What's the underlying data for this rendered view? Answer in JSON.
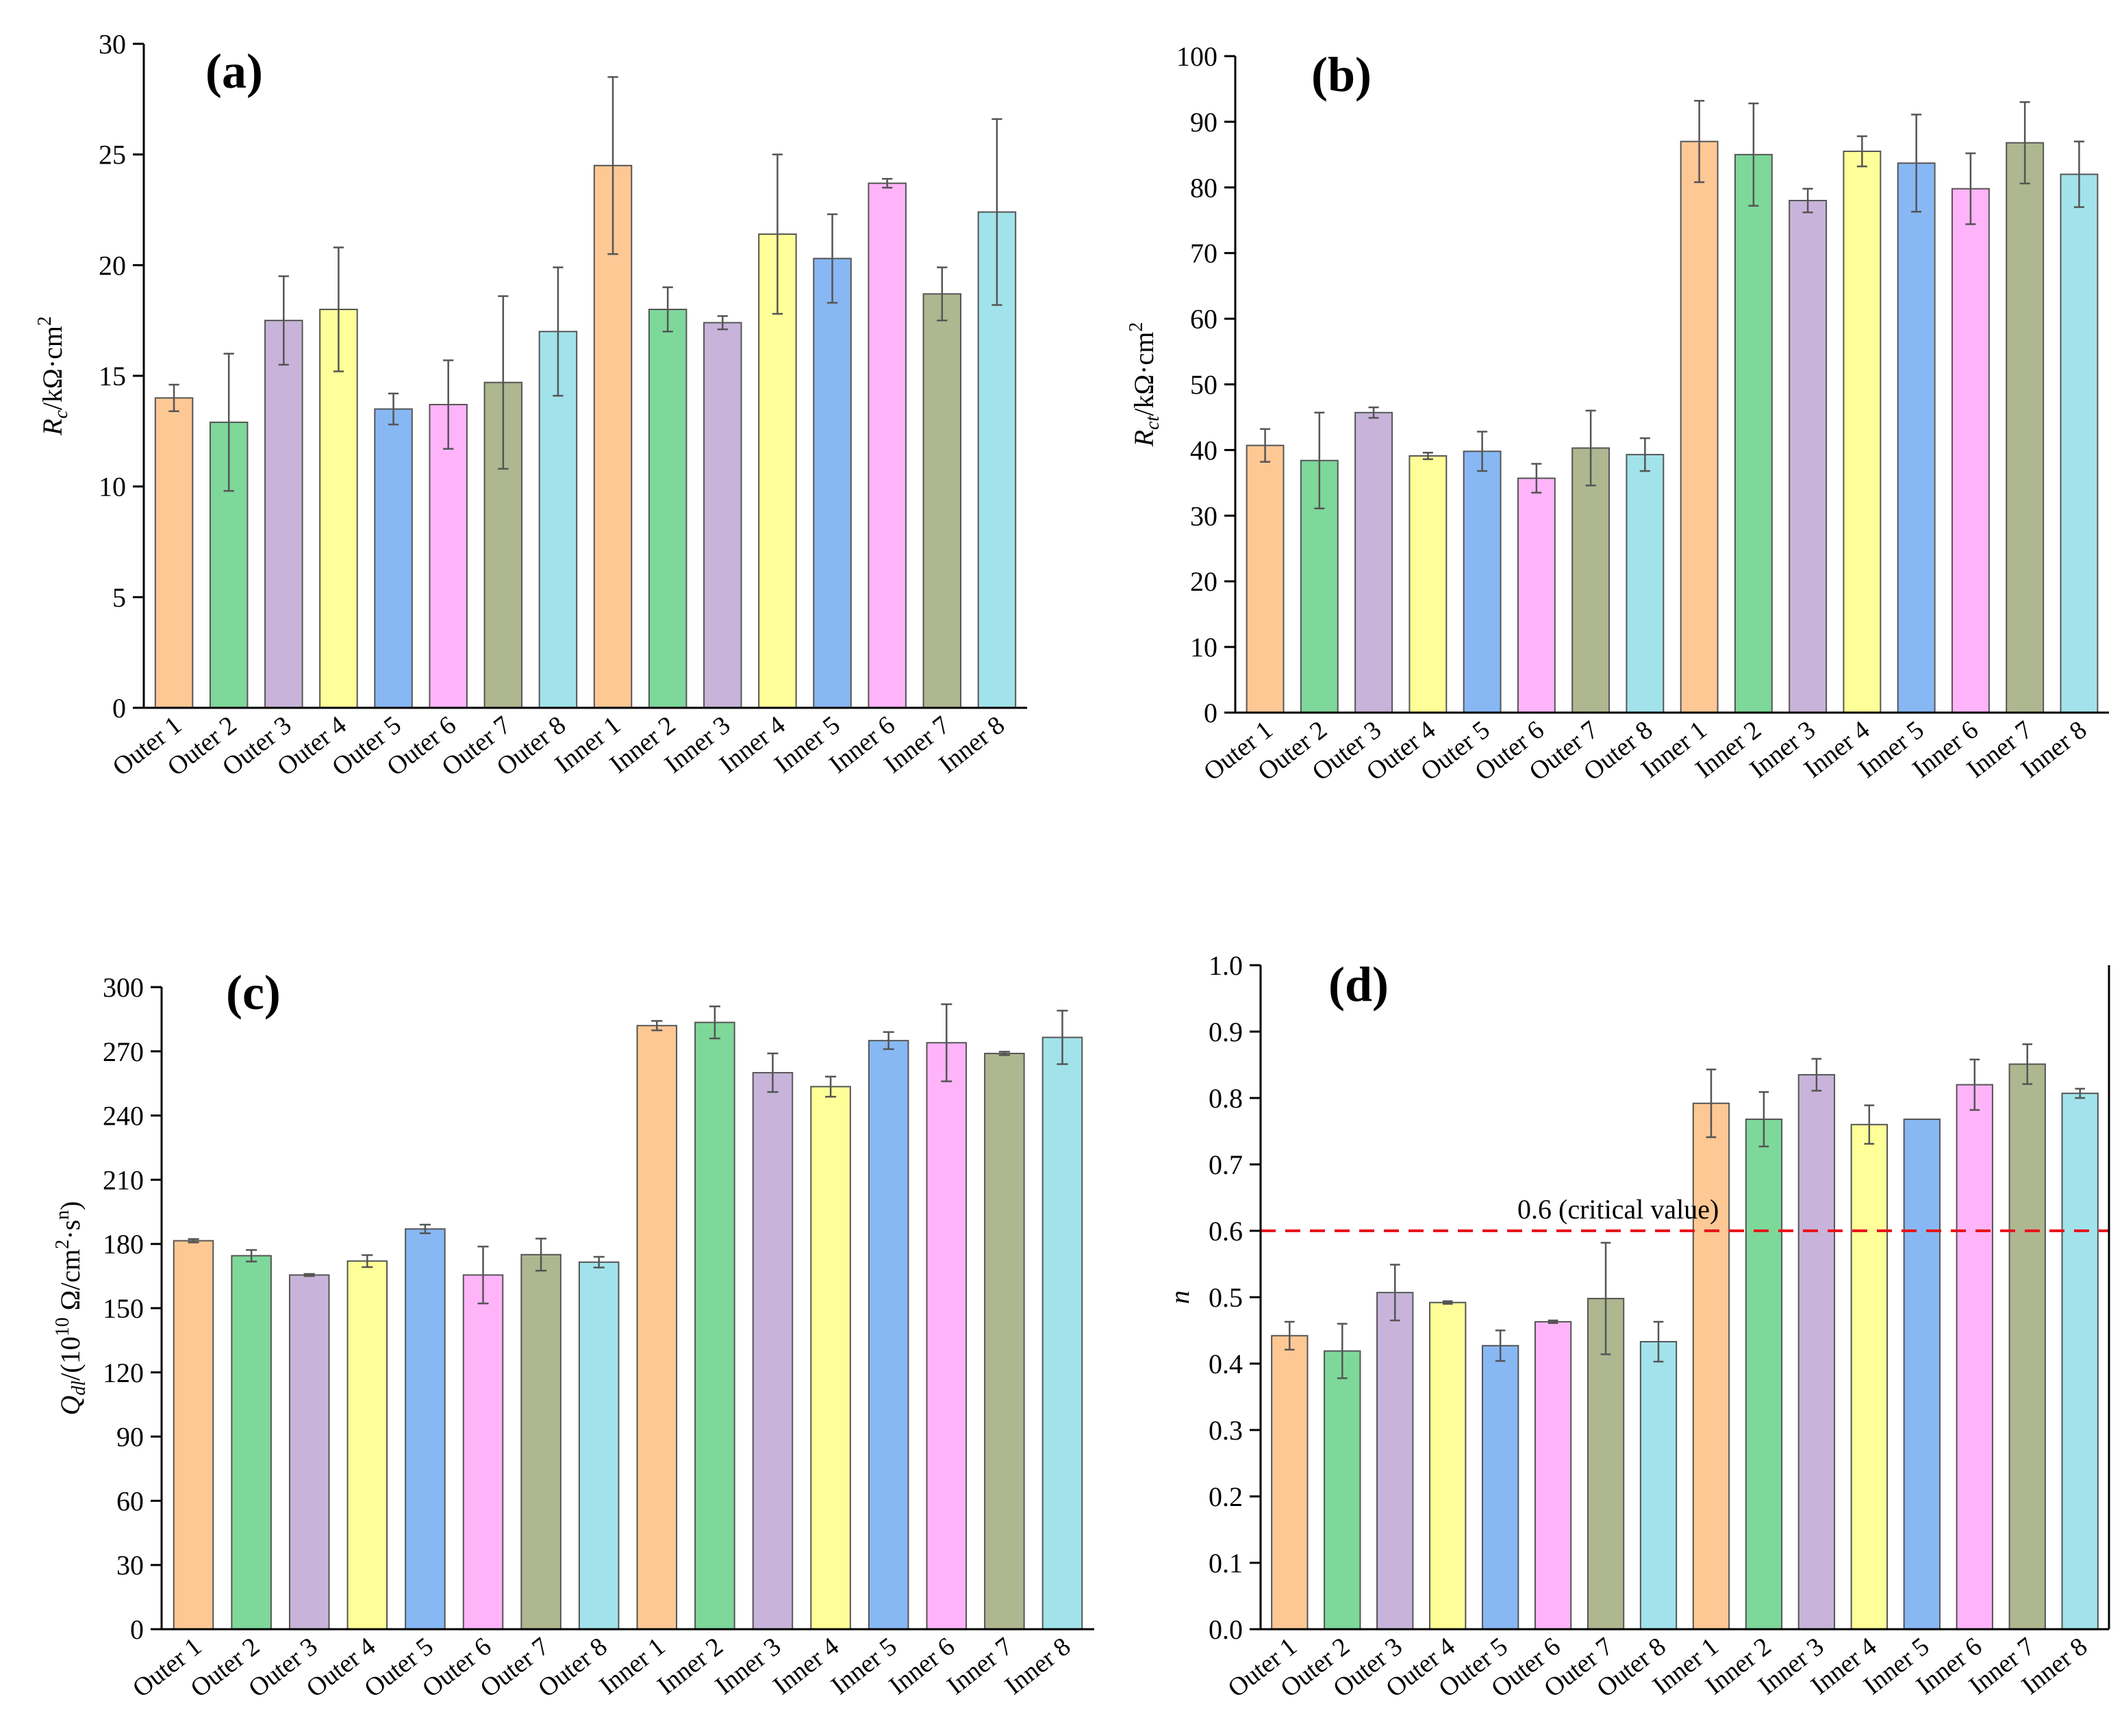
{
  "figure": {
    "categories": [
      "Outer 1",
      "Outer 2",
      "Outer 3",
      "Outer 4",
      "Outer 5",
      "Outer 6",
      "Outer 7",
      "Outer 8",
      "Inner 1",
      "Inner 2",
      "Inner 3",
      "Inner 4",
      "Inner 5",
      "Inner 6",
      "Inner 7",
      "Inner 8"
    ],
    "bar_colors": [
      "#FDC894",
      "#7ED89A",
      "#C8B4DA",
      "#FFFF99",
      "#88B8F4",
      "#FFB4FA",
      "#AEB78F",
      "#A2E3EB",
      "#FDC894",
      "#7ED89A",
      "#C8B4DA",
      "#FFFF99",
      "#88B8F4",
      "#FFB4FA",
      "#AEB78F",
      "#A2E3EB"
    ]
  },
  "chart_data": [
    {
      "id": "a",
      "type": "bar",
      "panel_label": "(a)",
      "ylabel_main": "R",
      "ylabel_sub": "c",
      "ylabel_rest": "/kΩ·cm",
      "ylabel_sup": "2",
      "ylim": [
        0,
        30
      ],
      "yticks": [
        0,
        5,
        10,
        15,
        20,
        25,
        30
      ],
      "values": [
        14.0,
        12.9,
        17.5,
        18.0,
        13.5,
        13.7,
        14.7,
        17.0,
        24.5,
        18.0,
        17.4,
        21.4,
        20.3,
        23.7,
        18.7,
        22.4
      ],
      "errors": [
        0.6,
        3.1,
        2.0,
        2.8,
        0.7,
        2.0,
        3.9,
        2.9,
        4.0,
        1.0,
        0.3,
        3.6,
        2.0,
        0.2,
        1.2,
        4.2
      ],
      "xlabel": "",
      "legend": "none"
    },
    {
      "id": "b",
      "type": "bar",
      "panel_label": "(b)",
      "ylabel_main": "R",
      "ylabel_sub": "ct",
      "ylabel_rest": "/kΩ·cm",
      "ylabel_sup": "2",
      "ylim": [
        0,
        100
      ],
      "yticks": [
        0,
        10,
        20,
        30,
        40,
        50,
        60,
        70,
        80,
        90,
        100
      ],
      "values": [
        40.7,
        38.4,
        45.7,
        39.1,
        39.8,
        35.7,
        40.3,
        39.3,
        87.0,
        85.0,
        78.0,
        85.5,
        83.7,
        79.8,
        86.8,
        82.0
      ],
      "errors": [
        2.5,
        7.3,
        0.8,
        0.5,
        3.0,
        2.2,
        5.7,
        2.5,
        6.2,
        7.8,
        1.8,
        2.3,
        7.4,
        5.4,
        6.2,
        5.0
      ],
      "xlabel": "",
      "legend": "none"
    },
    {
      "id": "c",
      "type": "bar",
      "panel_label": "(c)",
      "ylabel_main": "Q",
      "ylabel_sub": "dl",
      "ylabel_rest": "/(10",
      "ylabel_sup": "10",
      "ylabel_rest2": " Ω/cm",
      "ylabel_sup2": "2",
      "ylabel_rest3": "·s",
      "ylabel_sup3": "n",
      "ylabel_end": ")",
      "ylim": [
        0,
        300
      ],
      "yticks": [
        0,
        30,
        60,
        90,
        120,
        150,
        180,
        210,
        240,
        270,
        300
      ],
      "values": [
        181.5,
        174.5,
        165.5,
        172.0,
        187.0,
        165.5,
        175.0,
        171.5,
        282.0,
        283.5,
        260.0,
        253.5,
        275.0,
        274.0,
        269.0,
        276.5
      ],
      "errors": [
        0.8,
        2.7,
        0.5,
        2.8,
        2.0,
        13.3,
        7.5,
        2.5,
        2.2,
        7.5,
        9.0,
        4.7,
        4.0,
        18.0,
        0.8,
        12.5
      ],
      "xlabel": "",
      "legend": "none"
    },
    {
      "id": "d",
      "type": "bar",
      "panel_label": "(d)",
      "ylabel_main": "n",
      "ylim": [
        0,
        1.0
      ],
      "yticks": [
        0.0,
        0.1,
        0.2,
        0.3,
        0.4,
        0.5,
        0.6,
        0.7,
        0.8,
        0.9,
        1.0
      ],
      "values": [
        0.442,
        0.419,
        0.507,
        0.492,
        0.427,
        0.463,
        0.498,
        0.433,
        0.792,
        0.768,
        0.835,
        0.76,
        0.768,
        0.82,
        0.851,
        0.807
      ],
      "errors": [
        0.021,
        0.041,
        0.042,
        0.002,
        0.023,
        0.002,
        0.084,
        0.03,
        0.051,
        0.041,
        0.024,
        0.029,
        0.0,
        0.038,
        0.03,
        0.007
      ],
      "reference_line": {
        "value": 0.6,
        "label": "0.6 (critical value)",
        "color": "#E8141B"
      },
      "xlabel": "",
      "legend": "none"
    }
  ]
}
